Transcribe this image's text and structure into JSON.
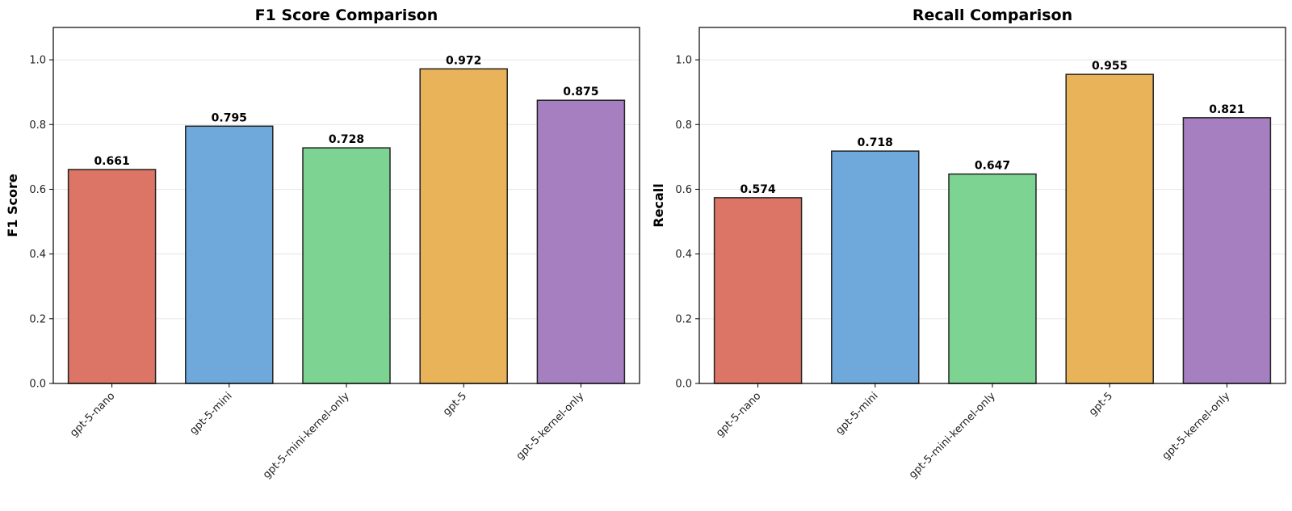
{
  "chart_data": [
    {
      "type": "bar",
      "title": "F1 Score Comparison",
      "xlabel": "",
      "ylabel": "F1 Score",
      "ylim": [
        0,
        1.1
      ],
      "yticks": [
        "0.0",
        "0.2",
        "0.4",
        "0.6",
        "0.8",
        "1.0"
      ],
      "categories": [
        "gpt-5-nano",
        "gpt-5-mini",
        "gpt-5-mini-kernel-only",
        "gpt-5",
        "gpt-5-kernel-only"
      ],
      "values": [
        0.661,
        0.795,
        0.728,
        0.972,
        0.875
      ],
      "value_labels": [
        "0.661",
        "0.795",
        "0.728",
        "0.972",
        "0.875"
      ],
      "colors": [
        "#dc7565",
        "#6fa8da",
        "#7dd392",
        "#e9b35a",
        "#a67fc1"
      ],
      "grid": "horizontal",
      "legend": "none"
    },
    {
      "type": "bar",
      "title": "Recall Comparison",
      "xlabel": "",
      "ylabel": "Recall",
      "ylim": [
        0,
        1.1
      ],
      "yticks": [
        "0.0",
        "0.2",
        "0.4",
        "0.6",
        "0.8",
        "1.0"
      ],
      "categories": [
        "gpt-5-nano",
        "gpt-5-mini",
        "gpt-5-mini-kernel-only",
        "gpt-5",
        "gpt-5-kernel-only"
      ],
      "values": [
        0.574,
        0.718,
        0.647,
        0.955,
        0.821
      ],
      "value_labels": [
        "0.574",
        "0.718",
        "0.647",
        "0.955",
        "0.821"
      ],
      "colors": [
        "#dc7565",
        "#6fa8da",
        "#7dd392",
        "#e9b35a",
        "#a67fc1"
      ],
      "grid": "horizontal",
      "legend": "none"
    }
  ]
}
